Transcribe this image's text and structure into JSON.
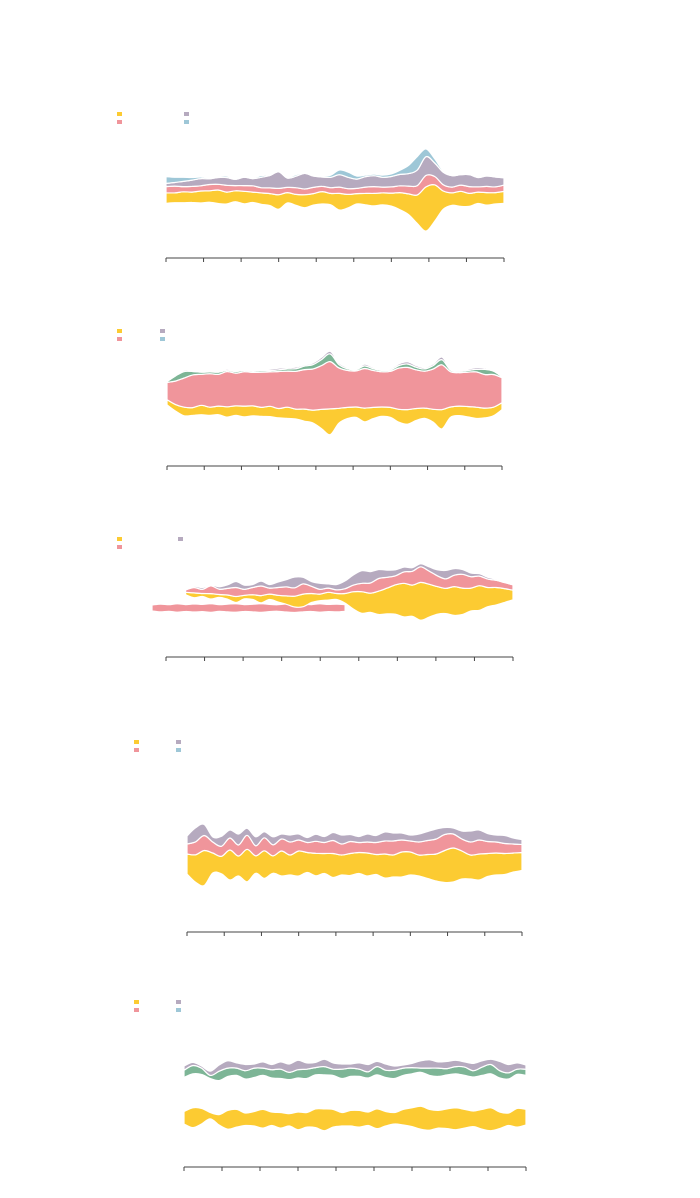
{
  "colors": {
    "yellow": "#fccb32",
    "pink": "#f0959b",
    "purple": "#b6aabf",
    "blue": "#9ec7d7",
    "green": "#7db596",
    "axis": "#444444"
  },
  "chart_data": [
    {
      "type": "area",
      "style": "streamgraph",
      "legend_swatches": [
        "yellow",
        "pink",
        "purple",
        "blue"
      ],
      "x_ticks": 10,
      "series": [
        {
          "color": "yellow",
          "values": [
            2.0,
            1.9,
            2.1,
            2.0,
            2.3,
            2.2,
            2.6,
            2.3,
            2.1,
            2.4,
            2.0,
            2.2,
            2.3,
            2.8,
            2.0,
            2.1,
            2.5,
            2.2,
            2.4,
            2.2,
            3.2,
            2.6,
            2.0,
            2.2,
            2.4,
            2.3,
            2.5,
            3.3,
            4.0,
            5.5,
            8.5,
            7.0,
            3.5,
            2.4,
            2.9,
            2.5,
            2.2,
            2.4,
            2.2,
            2.3
          ]
        },
        {
          "color": "pink",
          "values": [
            1.2,
            1.3,
            1.0,
            1.1,
            1.0,
            1.2,
            1.1,
            1.3,
            1.0,
            1.1,
            1.2,
            1.0,
            1.1,
            1.2,
            1.0,
            1.3,
            1.1,
            1.2,
            1.0,
            1.1,
            1.2,
            1.1,
            1.0,
            1.2,
            1.3,
            1.1,
            1.2,
            1.3,
            1.5,
            1.8,
            2.2,
            1.6,
            1.2,
            1.1,
            1.2,
            1.3,
            1.0,
            1.2,
            1.1,
            1.2
          ]
        },
        {
          "color": "purple",
          "values": [
            0.6,
            0.7,
            1.0,
            1.2,
            1.4,
            1.1,
            1.3,
            1.5,
            1.2,
            1.6,
            1.4,
            2.0,
            2.4,
            3.2,
            1.8,
            2.2,
            3.0,
            2.2,
            1.8,
            2.0,
            2.4,
            2.2,
            1.8,
            2.0,
            2.1,
            1.9,
            2.0,
            2.2,
            2.4,
            3.0,
            3.6,
            2.6,
            2.4,
            2.2,
            2.0,
            2.3,
            1.8,
            2.0,
            1.9,
            1.4
          ]
        },
        {
          "color": "blue",
          "values": [
            1.3,
            1.0,
            0.8,
            0.5,
            0.3,
            0.2,
            0.2,
            0.3,
            0.2,
            0.2,
            0.2,
            0.3,
            0.2,
            0.2,
            0.2,
            0.3,
            0.2,
            0.2,
            0.2,
            0.4,
            0.9,
            1.0,
            0.6,
            0.3,
            0.3,
            0.4,
            0.5,
            0.8,
            1.6,
            2.6,
            1.5,
            0.8,
            0.3,
            0.2,
            0.2,
            0.2,
            0.2,
            0.2,
            0.2,
            0.2
          ]
        }
      ]
    },
    {
      "type": "area",
      "style": "streamgraph",
      "legend_swatches": [
        "yellow",
        "pink",
        "purple",
        "blue"
      ],
      "x_ticks": 10,
      "series": [
        {
          "color": "yellow",
          "values": [
            1.2,
            1.5,
            2.0,
            1.8,
            2.2,
            1.9,
            2.0,
            2.4,
            2.2,
            2.5,
            2.3,
            2.1,
            2.4,
            2.2,
            2.6,
            2.3,
            2.8,
            3.0,
            4.5,
            6.0,
            3.5,
            2.6,
            2.4,
            3.2,
            2.6,
            2.2,
            2.3,
            3.0,
            3.4,
            2.8,
            2.4,
            3.0,
            4.5,
            2.4,
            2.2,
            2.4,
            2.6,
            2.3,
            2.0,
            1.6
          ]
        },
        {
          "color": "pink",
          "values": [
            4.0,
            5.5,
            6.8,
            7.6,
            7.2,
            7.8,
            7.4,
            8.2,
            7.6,
            8.0,
            7.8,
            8.2,
            8.0,
            8.6,
            8.4,
            8.8,
            9.2,
            9.6,
            10.2,
            11.0,
            9.4,
            8.6,
            8.4,
            9.2,
            8.6,
            8.2,
            8.4,
            9.6,
            9.8,
            9.0,
            8.6,
            9.4,
            10.4,
            8.2,
            7.8,
            8.0,
            8.2,
            7.8,
            7.6,
            5.8
          ]
        },
        {
          "color": "green",
          "values": [
            0.2,
            1.2,
            1.5,
            0.8,
            0.5,
            0.4,
            0.5,
            0.3,
            0.4,
            0.3,
            0.3,
            0.4,
            0.3,
            0.4,
            0.5,
            0.6,
            0.8,
            1.0,
            1.4,
            1.8,
            0.8,
            0.4,
            0.3,
            0.6,
            0.4,
            0.3,
            0.3,
            0.6,
            0.8,
            0.6,
            0.5,
            0.8,
            1.2,
            0.4,
            0.3,
            0.4,
            0.6,
            1.2,
            0.8,
            0.2
          ]
        },
        {
          "color": "purple",
          "values": [
            0.1,
            0.2,
            0.3,
            0.2,
            0.2,
            0.3,
            0.2,
            0.3,
            0.2,
            0.3,
            0.2,
            0.2,
            0.3,
            0.4,
            0.3,
            0.4,
            0.3,
            0.4,
            0.5,
            0.6,
            0.4,
            0.3,
            0.2,
            0.4,
            0.3,
            0.2,
            0.3,
            0.4,
            0.5,
            0.4,
            0.3,
            0.4,
            0.6,
            0.3,
            0.2,
            0.3,
            0.4,
            0.3,
            0.2,
            0.1
          ]
        }
      ]
    },
    {
      "type": "area",
      "style": "streamgraph",
      "legend_swatches": [
        "yellow",
        "pink",
        "purple"
      ],
      "x_ticks": 10,
      "series": [
        {
          "color": "pink",
          "segment": [
            0,
            24
          ],
          "values": [
            2.0,
            2.6,
            2.2,
            2.8,
            2.3,
            2.7,
            2.4,
            2.9,
            2.2,
            2.6,
            2.8,
            2.3,
            2.5,
            2.9,
            2.4,
            2.2,
            2.7,
            3.0,
            2.5,
            2.3,
            2.8,
            2.4,
            2.6,
            2.2
          ]
        },
        {
          "color": "yellow",
          "segment": [
            4,
            44
          ],
          "values": [
            0.8,
            1.6,
            1.0,
            1.8,
            0.9,
            1.4,
            2.0,
            1.2,
            1.6,
            2.4,
            1.8,
            2.2,
            2.8,
            3.6,
            4.2,
            3.0,
            2.2,
            2.6,
            2.0,
            3.2,
            5.8,
            7.2,
            6.4,
            7.8,
            8.6,
            9.8,
            11.2,
            10.4,
            12.6,
            11.0,
            9.2,
            8.4,
            9.6,
            8.8,
            7.6,
            8.2,
            6.4,
            5.8,
            4.6,
            3.2
          ]
        },
        {
          "color": "pink",
          "segment": [
            4,
            44
          ],
          "values": [
            0.8,
            1.8,
            1.4,
            2.6,
            1.8,
            2.2,
            3.0,
            2.0,
            2.4,
            3.2,
            2.0,
            2.6,
            3.0,
            2.8,
            3.4,
            2.4,
            1.6,
            1.4,
            1.2,
            1.6,
            2.2,
            2.8,
            3.4,
            4.2,
            3.6,
            3.0,
            3.8,
            4.6,
            5.2,
            4.4,
            3.6,
            3.2,
            3.8,
            4.6,
            3.8,
            3.2,
            2.8,
            2.4,
            2.0,
            1.8
          ]
        },
        {
          "color": "purple",
          "segment": [
            4,
            44
          ],
          "values": [
            0.2,
            0.4,
            0.6,
            0.3,
            0.8,
            1.2,
            2.0,
            1.4,
            1.0,
            1.6,
            1.2,
            1.8,
            2.4,
            3.6,
            2.2,
            1.6,
            2.0,
            1.4,
            1.8,
            2.6,
            3.4,
            4.2,
            3.8,
            3.0,
            2.4,
            2.0,
            1.6,
            1.2,
            1.0,
            1.4,
            2.0,
            2.8,
            2.2,
            1.6,
            1.2,
            0.8,
            0.6,
            0.4,
            0.3,
            0.2
          ]
        }
      ]
    },
    {
      "type": "area",
      "style": "streamgraph",
      "legend_swatches": [
        "yellow",
        "pink",
        "purple",
        "blue"
      ],
      "x_ticks": 10,
      "series": [
        {
          "color": "yellow",
          "values": [
            4.0,
            5.5,
            7.0,
            4.0,
            3.5,
            6.0,
            4.0,
            6.5,
            3.5,
            5.5,
            3.5,
            5.0,
            4.0,
            5.0,
            4.0,
            4.5,
            4.0,
            4.8,
            4.0,
            4.4,
            4.2,
            4.6,
            4.0,
            4.8,
            4.4,
            5.0,
            4.6,
            4.2,
            4.8,
            5.4,
            6.4,
            6.8,
            5.6,
            4.8,
            5.2,
            4.6,
            4.4,
            4.2,
            3.8,
            3.6
          ]
        },
        {
          "color": "pink",
          "values": [
            2.0,
            2.6,
            3.0,
            2.2,
            2.0,
            2.4,
            2.2,
            2.8,
            2.0,
            2.6,
            2.2,
            2.4,
            2.6,
            2.2,
            2.0,
            2.4,
            2.2,
            2.6,
            2.2,
            2.4,
            2.0,
            2.2,
            2.4,
            2.6,
            2.8,
            2.4,
            2.2,
            2.6,
            2.8,
            3.0,
            3.2,
            2.8,
            2.4,
            2.6,
            2.8,
            2.4,
            2.2,
            2.0,
            1.8,
            1.6
          ]
        },
        {
          "color": "purple",
          "values": [
            1.6,
            2.8,
            2.2,
            1.0,
            2.0,
            1.6,
            2.2,
            1.4,
            1.8,
            1.2,
            1.6,
            1.0,
            1.4,
            1.2,
            1.0,
            1.4,
            1.2,
            1.6,
            1.8,
            1.4,
            1.2,
            1.6,
            1.4,
            1.8,
            1.6,
            1.4,
            1.2,
            1.6,
            1.8,
            2.0,
            1.4,
            1.2,
            1.6,
            2.2,
            2.0,
            1.6,
            1.4,
            1.6,
            1.2,
            1.0
          ]
        }
      ]
    },
    {
      "type": "area",
      "style": "streamgraph",
      "legend_swatches": [
        "yellow",
        "pink",
        "purple",
        "blue"
      ],
      "x_ticks": 10,
      "series": [
        {
          "color": "yellow",
          "segment": [
            0,
            40
          ],
          "values": [
            2.4,
            3.8,
            3.0,
            1.2,
            2.0,
            3.6,
            3.4,
            2.4,
            2.8,
            3.6,
            2.6,
            3.0,
            2.4,
            3.4,
            2.8,
            3.6,
            4.2,
            3.4,
            2.6,
            3.0,
            3.2,
            2.6,
            3.8,
            2.8,
            2.2,
            3.0,
            3.6,
            4.4,
            4.0,
            3.4,
            3.8,
            4.2,
            3.6,
            3.0,
            3.8,
            4.4,
            3.2,
            2.4,
            3.6,
            3.0
          ]
        },
        {
          "color": "green",
          "segment": [
            0,
            40
          ],
          "values": [
            1.4,
            1.6,
            1.2,
            0.6,
            1.8,
            1.6,
            1.4,
            1.6,
            1.8,
            1.4,
            1.6,
            1.8,
            1.4,
            1.6,
            1.8,
            1.4,
            1.6,
            1.2,
            1.8,
            1.6,
            1.4,
            1.2,
            1.6,
            1.4,
            1.6,
            1.4,
            1.2,
            0.8,
            1.4,
            1.6,
            1.2,
            1.4,
            1.6,
            1.2,
            1.6,
            1.8,
            1.4,
            1.2,
            1.0,
            1.2
          ]
        },
        {
          "color": "purple",
          "segment": [
            0,
            40
          ],
          "values": [
            0.8,
            0.6,
            0.4,
            0.8,
            1.2,
            1.4,
            1.0,
            1.2,
            0.8,
            1.2,
            1.0,
            1.4,
            1.6,
            1.8,
            1.2,
            1.0,
            1.4,
            1.2,
            1.0,
            0.8,
            1.2,
            1.4,
            1.0,
            1.2,
            0.8,
            0.6,
            0.8,
            1.4,
            1.6,
            1.2,
            1.4,
            1.2,
            1.0,
            1.4,
            1.2,
            1.0,
            1.8,
            1.6,
            1.2,
            0.8
          ]
        }
      ]
    }
  ]
}
